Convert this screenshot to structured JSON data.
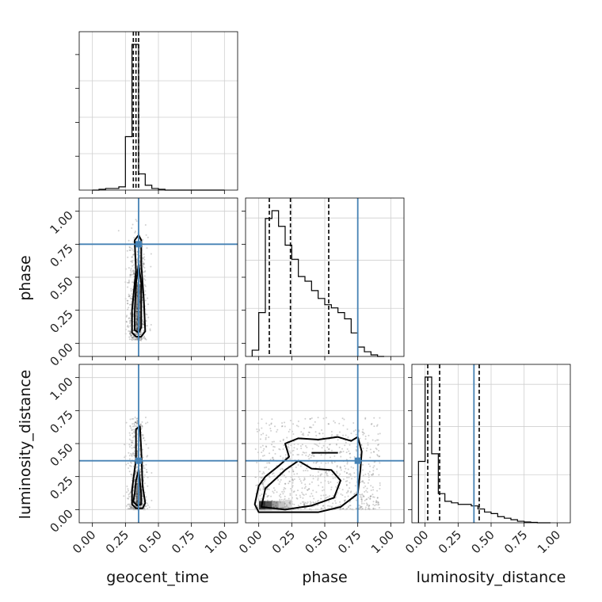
{
  "chart_data": {
    "type": "corner",
    "parameters": [
      "geocent_time",
      "phase",
      "luminosity_distance"
    ],
    "tick_values": [
      0.0,
      0.25,
      0.5,
      0.75,
      1.0
    ],
    "tick_labels": [
      "0.00",
      "0.25",
      "0.50",
      "0.75",
      "1.00"
    ],
    "axis_range": [
      -0.1,
      1.1
    ],
    "grid": true,
    "colors": {
      "truth": "#4682b4",
      "hist": "#000000",
      "quantile": "#000000",
      "points": "#555555"
    },
    "truths": {
      "geocent_time": 0.35,
      "phase": 0.75,
      "luminosity_distance": 0.37
    },
    "diagonal": [
      {
        "parameter": "geocent_time",
        "bin_edges": [
          0.0,
          0.05,
          0.1,
          0.15,
          0.2,
          0.25,
          0.3,
          0.35,
          0.4,
          0.45,
          0.5,
          0.55,
          0.6,
          0.65,
          0.7,
          0.75,
          0.8,
          0.85,
          0.9,
          0.95,
          1.0
        ],
        "counts": [
          0,
          0.005,
          0.01,
          0.01,
          0.02,
          0.33,
          0.9,
          0.1,
          0.03,
          0.01,
          0.005,
          0,
          0,
          0,
          0,
          0,
          0,
          0,
          0,
          0
        ],
        "quantiles": [
          0.31,
          0.33,
          0.35
        ]
      },
      {
        "parameter": "phase",
        "bin_edges": [
          -0.05,
          0.0,
          0.05,
          0.1,
          0.15,
          0.2,
          0.25,
          0.3,
          0.35,
          0.4,
          0.45,
          0.5,
          0.55,
          0.6,
          0.65,
          0.7,
          0.75,
          0.8,
          0.85,
          0.9,
          0.95
        ],
        "counts": [
          0.04,
          0.28,
          0.88,
          0.93,
          0.83,
          0.71,
          0.62,
          0.51,
          0.48,
          0.42,
          0.37,
          0.33,
          0.31,
          0.28,
          0.24,
          0.15,
          0.06,
          0.03,
          0.01,
          0.0
        ],
        "quantiles": [
          0.08,
          0.24,
          0.53
        ]
      },
      {
        "parameter": "luminosity_distance",
        "bin_edges": [
          -0.05,
          0.0,
          0.05,
          0.1,
          0.15,
          0.2,
          0.25,
          0.3,
          0.35,
          0.4,
          0.45,
          0.5,
          0.55,
          0.6,
          0.65,
          0.7,
          0.75,
          0.8,
          0.85,
          0.9,
          0.95
        ],
        "counts": [
          0.4,
          0.95,
          0.45,
          0.19,
          0.14,
          0.13,
          0.12,
          0.12,
          0.11,
          0.09,
          0.07,
          0.06,
          0.04,
          0.03,
          0.02,
          0.01,
          0.005,
          0.003,
          0.0,
          0.0
        ],
        "quantiles": [
          0.02,
          0.11,
          0.41
        ]
      }
    ],
    "pairs": [
      {
        "x_param": "geocent_time",
        "y_param": "phase",
        "x_center": 0.34,
        "x_spread": 0.035,
        "y_dist": "decreasing",
        "contours": [
          [
            [
              0.3,
              0.08
            ],
            [
              0.33,
              0.05
            ],
            [
              0.37,
              0.05
            ],
            [
              0.4,
              0.09
            ],
            [
              0.39,
              0.32
            ],
            [
              0.37,
              0.6
            ],
            [
              0.37,
              0.78
            ],
            [
              0.35,
              0.82
            ],
            [
              0.32,
              0.78
            ],
            [
              0.33,
              0.55
            ],
            [
              0.3,
              0.25
            ]
          ],
          [
            [
              0.32,
              0.1
            ],
            [
              0.35,
              0.08
            ],
            [
              0.37,
              0.12
            ],
            [
              0.37,
              0.45
            ],
            [
              0.35,
              0.6
            ],
            [
              0.33,
              0.45
            ],
            [
              0.32,
              0.22
            ]
          ]
        ]
      },
      {
        "x_param": "geocent_time",
        "y_param": "luminosity_distance",
        "x_center": 0.34,
        "x_spread": 0.035,
        "y_dist": "near-zero",
        "contours": [
          [
            [
              0.3,
              0.04
            ],
            [
              0.33,
              0.01
            ],
            [
              0.38,
              0.01
            ],
            [
              0.4,
              0.05
            ],
            [
              0.38,
              0.18
            ],
            [
              0.37,
              0.45
            ],
            [
              0.36,
              0.63
            ],
            [
              0.33,
              0.61
            ],
            [
              0.33,
              0.38
            ],
            [
              0.3,
              0.15
            ]
          ],
          [
            [
              0.31,
              0.06
            ],
            [
              0.34,
              0.03
            ],
            [
              0.37,
              0.04
            ],
            [
              0.37,
              0.12
            ],
            [
              0.35,
              0.3
            ],
            [
              0.33,
              0.22
            ],
            [
              0.32,
              0.12
            ]
          ]
        ]
      },
      {
        "x_param": "phase",
        "y_param": "luminosity_distance",
        "x_center": null,
        "x_spread": null,
        "y_dist": "near-zero",
        "contours": [
          [
            [
              -0.03,
              0.04
            ],
            [
              0.0,
              -0.02
            ],
            [
              0.45,
              -0.02
            ],
            [
              0.62,
              0.02
            ],
            [
              0.75,
              0.12
            ],
            [
              0.77,
              0.3
            ],
            [
              0.78,
              0.44
            ],
            [
              0.75,
              0.55
            ],
            [
              0.7,
              0.52
            ],
            [
              0.6,
              0.55
            ],
            [
              0.45,
              0.53
            ],
            [
              0.3,
              0.54
            ],
            [
              0.2,
              0.5
            ],
            [
              0.23,
              0.4
            ],
            [
              0.15,
              0.33
            ],
            [
              0.05,
              0.25
            ],
            [
              0.0,
              0.18
            ]
          ],
          [
            [
              0.02,
              0.02
            ],
            [
              0.2,
              0.0
            ],
            [
              0.4,
              0.03
            ],
            [
              0.57,
              0.09
            ],
            [
              0.62,
              0.22
            ],
            [
              0.55,
              0.3
            ],
            [
              0.4,
              0.31
            ],
            [
              0.3,
              0.37
            ],
            [
              0.2,
              0.3
            ],
            [
              0.05,
              0.16
            ]
          ]
        ]
      }
    ]
  }
}
